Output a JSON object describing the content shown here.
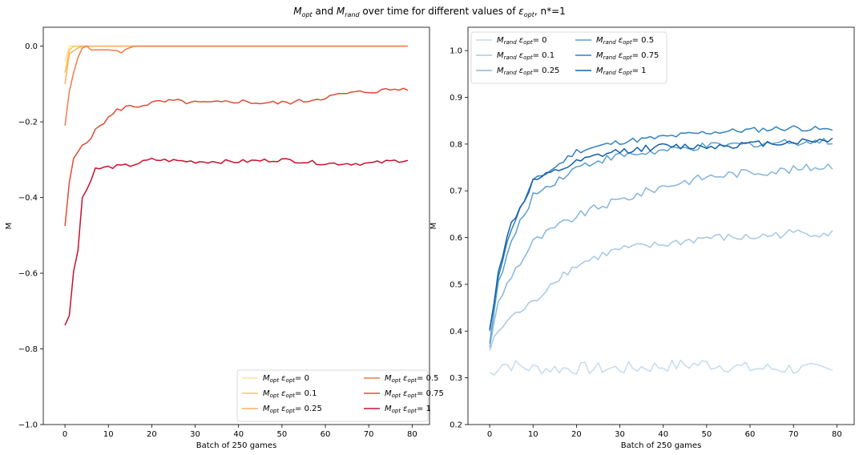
{
  "chart_data": {
    "title": {
      "m1": "M",
      "m1_sub": "opt",
      "and": " and ",
      "m2": "M",
      "m2_sub": "rand",
      "middle": " over time for different values of ",
      "eps": "ε",
      "eps_sub": "opt",
      "tail": ", n*=1"
    },
    "charts": [
      {
        "type": "line",
        "xlabel": "Batch of 250 games",
        "ylabel": "M",
        "xlim": [
          -5,
          84
        ],
        "ylim": [
          -1.0,
          0.05
        ],
        "xticks": [
          0,
          10,
          20,
          30,
          40,
          50,
          60,
          70,
          80
        ],
        "xtick_labels": [
          "0",
          "10",
          "20",
          "30",
          "40",
          "50",
          "60",
          "70",
          "80"
        ],
        "yticks": [
          -1.0,
          -0.8,
          -0.6,
          -0.4,
          -0.2,
          0.0
        ],
        "ytick_labels": [
          "−1.0",
          "−0.8",
          "−0.6",
          "−0.4",
          "−0.2",
          "0.0"
        ],
        "legend_position": "lower-right",
        "legend_columns": 2,
        "series": [
          {
            "name": "0",
            "label_prefix": "M",
            "label_sub": "opt",
            "label_eps": "ε",
            "label_eps_sub": "opt",
            "color": "#fee391",
            "anchors": [
              [
                0,
                -0.04
              ],
              [
                1,
                0.0
              ],
              [
                79,
                0.0
              ]
            ],
            "noise": 0.0,
            "seed": 1
          },
          {
            "name": "0.1",
            "label_prefix": "M",
            "label_sub": "opt",
            "label_eps": "ε",
            "label_eps_sub": "opt",
            "color": "#fec44f",
            "anchors": [
              [
                0,
                -0.07
              ],
              [
                1,
                -0.01
              ],
              [
                2,
                0.0
              ],
              [
                79,
                0.0
              ]
            ],
            "noise": 0.0,
            "seed": 2
          },
          {
            "name": "0.25",
            "label_prefix": "M",
            "label_sub": "opt",
            "label_eps": "ε",
            "label_eps_sub": "opt",
            "color": "#fdae61",
            "anchors": [
              [
                0,
                -0.1
              ],
              [
                1,
                -0.02
              ],
              [
                3,
                -0.005
              ],
              [
                4,
                0.0
              ],
              [
                79,
                0.0
              ]
            ],
            "noise": 0.0,
            "seed": 3
          },
          {
            "name": "0.5",
            "label_prefix": "M",
            "label_sub": "opt",
            "label_eps": "ε",
            "label_eps_sub": "opt",
            "color": "#f07c4a",
            "anchors": [
              [
                0,
                -0.21
              ],
              [
                1,
                -0.12
              ],
              [
                2,
                -0.07
              ],
              [
                3,
                -0.03
              ],
              [
                4,
                -0.005
              ],
              [
                5,
                0.0
              ],
              [
                6,
                -0.01
              ],
              [
                8,
                -0.01
              ],
              [
                10,
                -0.01
              ],
              [
                12,
                -0.012
              ],
              [
                13,
                -0.018
              ],
              [
                14,
                -0.008
              ],
              [
                16,
                0.0
              ],
              [
                79,
                0.0
              ]
            ],
            "noise": 0.0,
            "seed": 4
          },
          {
            "name": "0.75",
            "label_prefix": "M",
            "label_sub": "opt",
            "label_eps": "ε",
            "label_eps_sub": "opt",
            "color": "#e34a33",
            "anchors": [
              [
                0,
                -0.48
              ],
              [
                1,
                -0.36
              ],
              [
                2,
                -0.3
              ],
              [
                4,
                -0.26
              ],
              [
                6,
                -0.24
              ],
              [
                8,
                -0.21
              ],
              [
                10,
                -0.19
              ],
              [
                12,
                -0.17
              ],
              [
                14,
                -0.16
              ],
              [
                16,
                -0.16
              ],
              [
                18,
                -0.155
              ],
              [
                20,
                -0.15
              ],
              [
                25,
                -0.145
              ],
              [
                30,
                -0.15
              ],
              [
                35,
                -0.15
              ],
              [
                40,
                -0.145
              ],
              [
                45,
                -0.15
              ],
              [
                50,
                -0.15
              ],
              [
                55,
                -0.145
              ],
              [
                60,
                -0.135
              ],
              [
                65,
                -0.125
              ],
              [
                70,
                -0.12
              ],
              [
                75,
                -0.115
              ],
              [
                79,
                -0.112
              ]
            ],
            "noise": 0.006,
            "seed": 5
          },
          {
            "name": "1",
            "label_prefix": "M",
            "label_sub": "opt",
            "label_eps": "ε",
            "label_eps_sub": "opt",
            "color": "#c8102e",
            "anchors": [
              [
                0,
                -0.74
              ],
              [
                1,
                -0.71
              ],
              [
                2,
                -0.59
              ],
              [
                3,
                -0.54
              ],
              [
                4,
                -0.4
              ],
              [
                5,
                -0.38
              ],
              [
                6,
                -0.35
              ],
              [
                7,
                -0.325
              ],
              [
                10,
                -0.32
              ],
              [
                15,
                -0.315
              ],
              [
                20,
                -0.3
              ],
              [
                30,
                -0.305
              ],
              [
                40,
                -0.305
              ],
              [
                50,
                -0.3
              ],
              [
                60,
                -0.31
              ],
              [
                70,
                -0.31
              ],
              [
                79,
                -0.3
              ]
            ],
            "noise": 0.005,
            "seed": 6
          }
        ]
      },
      {
        "type": "line",
        "xlabel": "Batch of 250 games",
        "ylabel": "M",
        "xlim": [
          -5,
          84
        ],
        "ylim": [
          0.2,
          1.05
        ],
        "xticks": [
          0,
          10,
          20,
          30,
          40,
          50,
          60,
          70,
          80
        ],
        "xtick_labels": [
          "0",
          "10",
          "20",
          "30",
          "40",
          "50",
          "60",
          "70",
          "80"
        ],
        "yticks": [
          0.2,
          0.3,
          0.4,
          0.5,
          0.6,
          0.7,
          0.8,
          0.9,
          1.0
        ],
        "ytick_labels": [
          "0.2",
          "0.3",
          "0.4",
          "0.5",
          "0.6",
          "0.7",
          "0.8",
          "0.9",
          "1.0"
        ],
        "legend_position": "upper-left",
        "legend_columns": 2,
        "series": [
          {
            "name": "0",
            "label_prefix": "M",
            "label_sub": "rand",
            "label_eps": "ε",
            "label_eps_sub": "opt",
            "color": "#c6dbef",
            "anchors": [
              [
                0,
                0.31
              ],
              [
                3,
                0.33
              ],
              [
                10,
                0.32
              ],
              [
                20,
                0.32
              ],
              [
                30,
                0.32
              ],
              [
                40,
                0.325
              ],
              [
                50,
                0.33
              ],
              [
                60,
                0.32
              ],
              [
                70,
                0.32
              ],
              [
                79,
                0.315
              ]
            ],
            "noise": 0.014,
            "seed": 7
          },
          {
            "name": "0.1",
            "label_prefix": "M",
            "label_sub": "rand",
            "label_eps": "ε",
            "label_eps_sub": "opt",
            "color": "#a6c8e4",
            "anchors": [
              [
                0,
                0.36
              ],
              [
                2,
                0.4
              ],
              [
                5,
                0.43
              ],
              [
                10,
                0.46
              ],
              [
                15,
                0.51
              ],
              [
                20,
                0.54
              ],
              [
                25,
                0.56
              ],
              [
                30,
                0.575
              ],
              [
                40,
                0.585
              ],
              [
                50,
                0.6
              ],
              [
                60,
                0.6
              ],
              [
                70,
                0.61
              ],
              [
                79,
                0.61
              ]
            ],
            "noise": 0.009,
            "seed": 8
          },
          {
            "name": "0.25",
            "label_prefix": "M",
            "label_sub": "rand",
            "label_eps": "ε",
            "label_eps_sub": "opt",
            "color": "#86b6dc",
            "anchors": [
              [
                0,
                0.37
              ],
              [
                2,
                0.46
              ],
              [
                5,
                0.52
              ],
              [
                8,
                0.56
              ],
              [
                10,
                0.59
              ],
              [
                15,
                0.62
              ],
              [
                20,
                0.645
              ],
              [
                25,
                0.665
              ],
              [
                30,
                0.68
              ],
              [
                35,
                0.695
              ],
              [
                40,
                0.71
              ],
              [
                45,
                0.72
              ],
              [
                50,
                0.73
              ],
              [
                60,
                0.74
              ],
              [
                70,
                0.745
              ],
              [
                79,
                0.755
              ]
            ],
            "noise": 0.009,
            "seed": 9
          },
          {
            "name": "0.5",
            "label_prefix": "M",
            "label_sub": "rand",
            "label_eps": "ε",
            "label_eps_sub": "opt",
            "color": "#5a9fd0",
            "anchors": [
              [
                0,
                0.38
              ],
              [
                2,
                0.5
              ],
              [
                5,
                0.59
              ],
              [
                8,
                0.65
              ],
              [
                10,
                0.69
              ],
              [
                15,
                0.72
              ],
              [
                20,
                0.75
              ],
              [
                25,
                0.765
              ],
              [
                30,
                0.775
              ],
              [
                40,
                0.785
              ],
              [
                50,
                0.795
              ],
              [
                60,
                0.8
              ],
              [
                70,
                0.805
              ],
              [
                79,
                0.805
              ]
            ],
            "noise": 0.008,
            "seed": 10
          },
          {
            "name": "0.75",
            "label_prefix": "M",
            "label_sub": "rand",
            "label_eps": "ε",
            "label_eps_sub": "opt",
            "color": "#3282bd",
            "anchors": [
              [
                0,
                0.395
              ],
              [
                2,
                0.52
              ],
              [
                5,
                0.62
              ],
              [
                8,
                0.68
              ],
              [
                10,
                0.72
              ],
              [
                15,
                0.75
              ],
              [
                20,
                0.785
              ],
              [
                25,
                0.795
              ],
              [
                30,
                0.805
              ],
              [
                40,
                0.815
              ],
              [
                50,
                0.825
              ],
              [
                60,
                0.83
              ],
              [
                70,
                0.835
              ],
              [
                79,
                0.83
              ]
            ],
            "noise": 0.006,
            "seed": 11
          },
          {
            "name": "1",
            "label_prefix": "M",
            "label_sub": "rand",
            "label_eps": "ε",
            "label_eps_sub": "opt",
            "color": "#1361a9",
            "anchors": [
              [
                0,
                0.4
              ],
              [
                2,
                0.53
              ],
              [
                5,
                0.63
              ],
              [
                8,
                0.68
              ],
              [
                10,
                0.72
              ],
              [
                15,
                0.74
              ],
              [
                20,
                0.76
              ],
              [
                25,
                0.775
              ],
              [
                30,
                0.785
              ],
              [
                40,
                0.795
              ],
              [
                50,
                0.795
              ],
              [
                60,
                0.8
              ],
              [
                70,
                0.805
              ],
              [
                79,
                0.81
              ]
            ],
            "noise": 0.007,
            "seed": 12
          }
        ]
      }
    ]
  }
}
